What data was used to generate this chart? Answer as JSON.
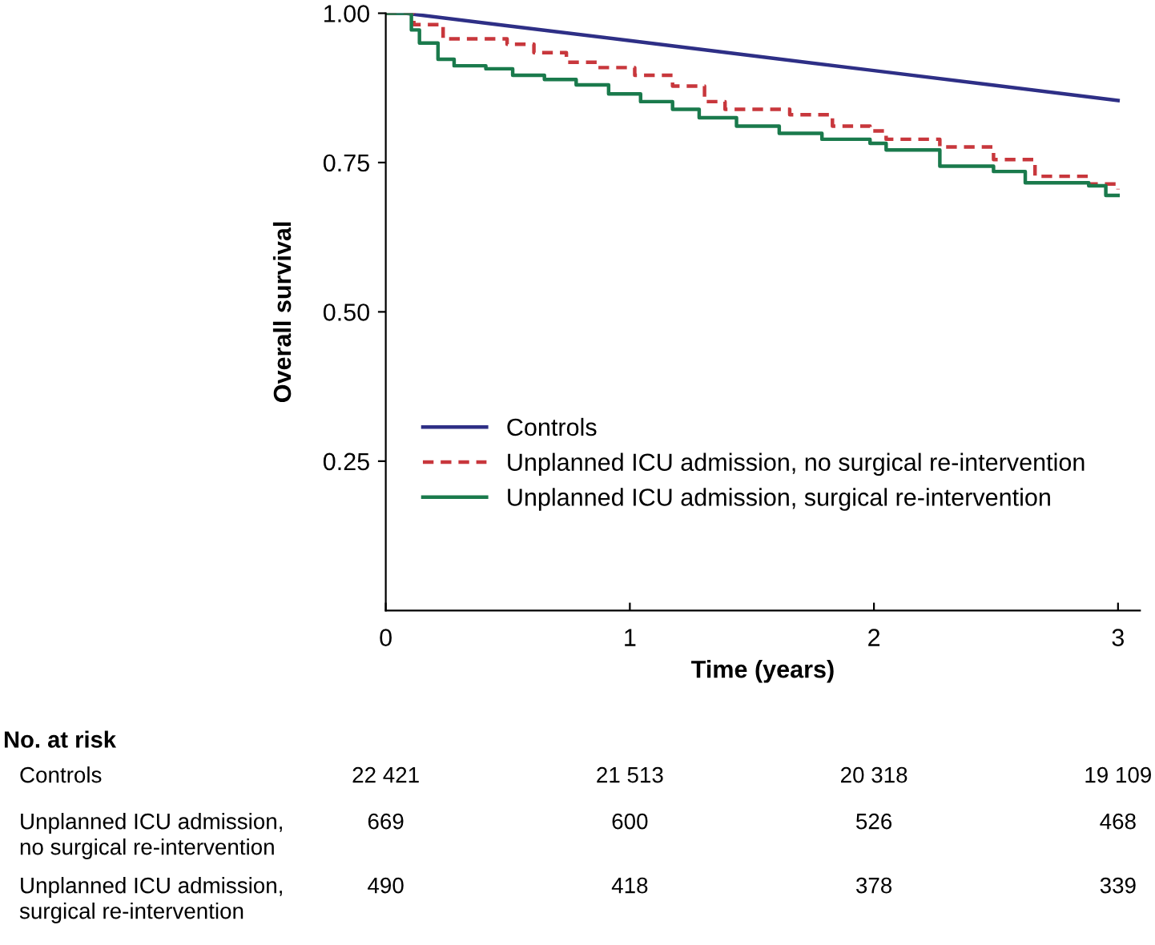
{
  "chart_data": {
    "type": "step",
    "xlabel": "Time (years)",
    "ylabel": "Overall survival",
    "xlim": [
      0,
      3.09
    ],
    "ylim": [
      0,
      1.0
    ],
    "xticks": [
      0,
      1,
      2,
      3
    ],
    "yticks": [
      {
        "value": 0.25,
        "label": "0.25"
      },
      {
        "value": 0.5,
        "label": "0.50"
      },
      {
        "value": 0.75,
        "label": "0.75"
      },
      {
        "value": 1.0,
        "label": "1.00"
      }
    ],
    "grid": false,
    "legend": "lower left",
    "series": [
      {
        "name": "Controls",
        "type": "line",
        "color": "#2e2f86",
        "line_style": "solid",
        "x": [
          0,
          0.08,
          0.5,
          1,
          1.5,
          2,
          2.5,
          3
        ],
        "values": [
          1.0,
          1.0,
          0.979,
          0.954,
          0.929,
          0.904,
          0.879,
          0.854
        ]
      },
      {
        "name": "Unplanned ICU admission, no surgical re-intervention",
        "color": "#c8373c",
        "line_style": "dashed",
        "x": [
          0,
          0.076,
          0.115,
          0.235,
          0.497,
          0.607,
          0.74,
          0.87,
          1.02,
          1.175,
          1.306,
          1.39,
          1.655,
          1.83,
          1.984,
          2.05,
          2.27,
          2.49,
          2.66,
          2.88,
          3.0
        ],
        "values": [
          1.0,
          1.0,
          0.981,
          0.957,
          0.948,
          0.934,
          0.918,
          0.909,
          0.896,
          0.878,
          0.852,
          0.839,
          0.83,
          0.811,
          0.803,
          0.789,
          0.776,
          0.755,
          0.727,
          0.714,
          0.705
        ]
      },
      {
        "name": "Unplanned ICU admission, surgical re-intervention",
        "color": "#1a7a4c",
        "line_style": "solid",
        "x": [
          0,
          0.076,
          0.105,
          0.138,
          0.214,
          0.28,
          0.41,
          0.52,
          0.65,
          0.78,
          0.913,
          1.044,
          1.175,
          1.284,
          1.437,
          1.612,
          1.787,
          1.984,
          2.05,
          2.27,
          2.49,
          2.62,
          2.88,
          2.95,
          3.0
        ],
        "values": [
          1.0,
          1.0,
          0.972,
          0.95,
          0.923,
          0.912,
          0.907,
          0.896,
          0.889,
          0.88,
          0.865,
          0.852,
          0.839,
          0.825,
          0.811,
          0.799,
          0.789,
          0.782,
          0.771,
          0.744,
          0.735,
          0.716,
          0.711,
          0.695,
          0.695
        ]
      }
    ],
    "annotations": [
      "No. at risk",
      "Controls",
      "22 421",
      "21 513",
      "20 318",
      "19 109",
      "Unplanned ICU admission,\nno surgical re-intervention",
      "669",
      "600",
      "526",
      "468",
      "Unplanned ICU admission,\nsurgical re-intervention",
      "490",
      "418",
      "378",
      "339"
    ]
  }
}
